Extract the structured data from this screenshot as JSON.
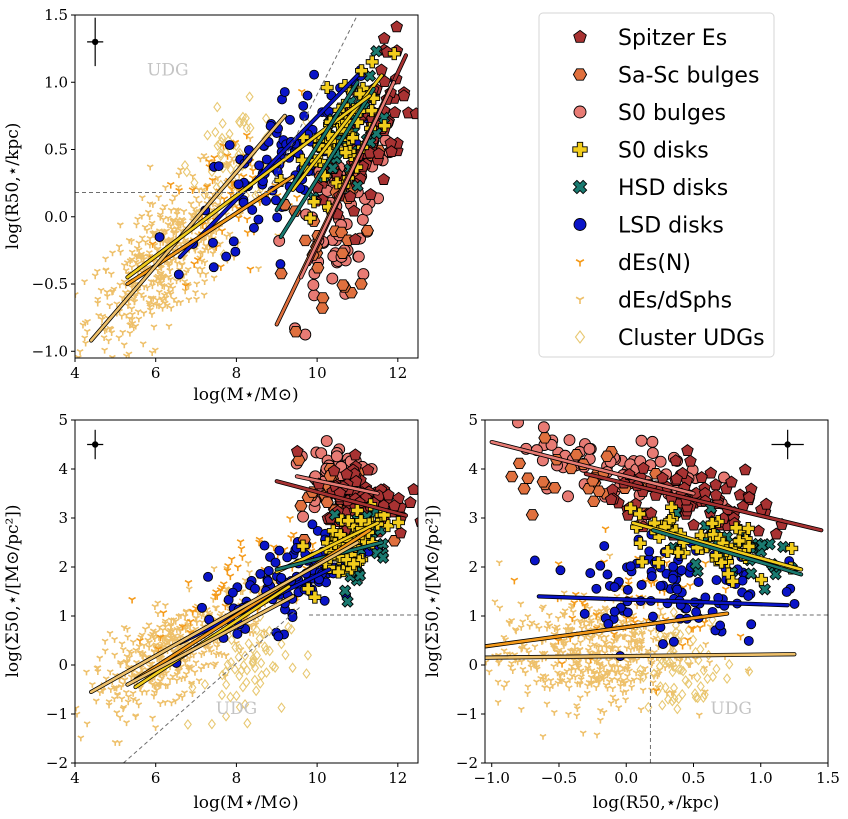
{
  "colors": {
    "spitzer": "#a83232",
    "sasc": "#e0703e",
    "s0b": "#e87b74",
    "s0d": "#f2cd1c",
    "hsd": "#1a7a70",
    "lsd": "#0a14c8",
    "den": "#f59a19",
    "ded": "#eec06a",
    "udgs": "#e8c872"
  },
  "legend": {
    "entries": [
      {
        "key": "spitzer",
        "label": "Spitzer Es",
        "marker": "pentagon"
      },
      {
        "key": "sasc",
        "label": "Sa-Sc bulges",
        "marker": "hexagon"
      },
      {
        "key": "s0b",
        "label": "S0 bulges",
        "marker": "circle"
      },
      {
        "key": "s0d",
        "label": "S0 disks",
        "marker": "plus"
      },
      {
        "key": "hsd",
        "label": "HSD disks",
        "marker": "x"
      },
      {
        "key": "lsd",
        "label": "LSD disks",
        "marker": "circle"
      },
      {
        "key": "den",
        "label": "dEs(N)",
        "marker": "tri"
      },
      {
        "key": "ded",
        "label": "dEs/dSphs",
        "marker": "tri"
      },
      {
        "key": "udgs",
        "label": "Cluster UDGs",
        "marker": "diamond"
      }
    ]
  },
  "chart_data": [
    {
      "id": "p1",
      "type": "scatter",
      "title": "",
      "xlabel": "log(M⋆/M⊙)",
      "ylabel": "log(R50,⋆/kpc)",
      "xlim": [
        4,
        12.5
      ],
      "ylim": [
        -1.05,
        1.5
      ],
      "xticks": [
        4,
        6,
        8,
        10,
        12
      ],
      "yticks": [
        -1.0,
        -0.5,
        0.0,
        0.5,
        1.0,
        1.5
      ],
      "xtick_labels": [
        "4",
        "6",
        "8",
        "10",
        "12"
      ],
      "ytick_labels": [
        "−1.0",
        "−0.5",
        "0.0",
        "0.5",
        "1.0",
        "1.5"
      ],
      "annotation": {
        "text": "UDG",
        "x": 6.3,
        "y": 1.05
      },
      "series": [
        {
          "name": "Spitzer Es",
          "key": "spitzer",
          "center": [
            11.2,
            0.55
          ],
          "spread": [
            0.55,
            0.35
          ],
          "corr": 0.6,
          "count": 90,
          "fit": [
            [
              9.8,
              -0.35
            ],
            [
              12.2,
              1.2
            ]
          ]
        },
        {
          "name": "Sa-Sc bulges",
          "key": "sasc",
          "center": [
            10.2,
            -0.2
          ],
          "spread": [
            0.6,
            0.35
          ],
          "corr": 0.5,
          "count": 30,
          "fit": [
            [
              9.0,
              -0.8
            ],
            [
              11.8,
              0.95
            ]
          ]
        },
        {
          "name": "S0 bulges",
          "key": "s0b",
          "center": [
            10.5,
            -0.05
          ],
          "spread": [
            0.55,
            0.35
          ],
          "corr": 0.5,
          "count": 65,
          "fit": [
            [
              9.6,
              -0.45
            ],
            [
              11.9,
              1.0
            ]
          ]
        },
        {
          "name": "S0 disks",
          "key": "s0d",
          "center": [
            10.6,
            0.6
          ],
          "spread": [
            0.5,
            0.25
          ],
          "corr": 0.55,
          "count": 55,
          "fit": [
            [
              9.4,
              0.2
            ],
            [
              11.6,
              1.05
            ]
          ]
        },
        {
          "name": "HSD disks",
          "key": "hsd",
          "center": [
            10.8,
            0.65
          ],
          "spread": [
            0.4,
            0.22
          ],
          "corr": 0.55,
          "count": 35,
          "fit": [
            [
              9.1,
              -0.15
            ],
            [
              11.4,
              0.95
            ]
          ]
        },
        {
          "name": "LSD disks",
          "key": "lsd",
          "center": [
            9.3,
            0.45
          ],
          "spread": [
            1.1,
            0.35
          ],
          "corr": 0.65,
          "count": 110,
          "fit": [
            [
              6.6,
              -0.3
            ],
            [
              11.0,
              1.05
            ]
          ]
        },
        {
          "name": "dEs(N)",
          "key": "den",
          "center": [
            7.8,
            0.1
          ],
          "spread": [
            0.9,
            0.3
          ],
          "corr": 0.5,
          "count": 60,
          "fit": [
            [
              5.3,
              -0.5
            ],
            [
              9.4,
              0.3
            ]
          ]
        },
        {
          "name": "dEs/dSphs",
          "key": "ded",
          "center": [
            6.3,
            -0.3
          ],
          "spread": [
            1.0,
            0.33
          ],
          "corr": 0.7,
          "count": 480,
          "fit": [
            [
              4.4,
              -0.92
            ],
            [
              9.2,
              0.75
            ]
          ]
        },
        {
          "name": "Cluster UDGs",
          "key": "udgs",
          "center": [
            8.0,
            0.45
          ],
          "spread": [
            0.55,
            0.18
          ],
          "corr": 0.2,
          "count": 60,
          "fit": null
        }
      ],
      "extra_fits": [
        {
          "key": "s0d",
          "line": [
            [
              5.3,
              -0.45
            ],
            [
              11.3,
              0.9
            ]
          ]
        },
        {
          "key": "hsd",
          "line": [
            [
              9.0,
              0.05
            ],
            [
              11.0,
              1.0
            ]
          ]
        }
      ],
      "guides": [
        {
          "type": "dashed",
          "points": [
            [
              4,
              0.18
            ],
            [
              9.0,
              0.18
            ]
          ]
        },
        {
          "type": "dashed",
          "points": [
            [
              8.8,
              0.2
            ],
            [
              11.0,
              1.5
            ]
          ]
        }
      ],
      "errorbar": {
        "x": 4.5,
        "y": 1.3,
        "xerr": 0.2,
        "yerr": 0.18
      }
    },
    {
      "id": "p2",
      "type": "scatter",
      "title": "",
      "xlabel": "log(M⋆/M⊙)",
      "ylabel": "log(Σ50,⋆/[M⊙/pc²])",
      "xlim": [
        4,
        12.5
      ],
      "ylim": [
        -2,
        5
      ],
      "xticks": [
        4,
        6,
        8,
        10,
        12
      ],
      "yticks": [
        -2,
        -1,
        0,
        1,
        2,
        3,
        4,
        5
      ],
      "xtick_labels": [
        "4",
        "6",
        "8",
        "10",
        "12"
      ],
      "ytick_labels": [
        "−2",
        "−1",
        "0",
        "1",
        "2",
        "3",
        "4",
        "5"
      ],
      "annotation": {
        "text": "UDG",
        "x": 8.0,
        "y": -1.0
      },
      "series": [
        {
          "name": "Spitzer Es",
          "key": "spitzer",
          "center": [
            11.2,
            3.4
          ],
          "spread": [
            0.5,
            0.35
          ],
          "corr": -0.2,
          "count": 90,
          "fit": [
            [
              9.0,
              3.75
            ],
            [
              12.2,
              3.05
            ]
          ]
        },
        {
          "name": "Sa-Sc bulges",
          "key": "sasc",
          "center": [
            10.5,
            3.4
          ],
          "spread": [
            0.5,
            0.4
          ],
          "corr": 0.0,
          "count": 30,
          "fit": null
        },
        {
          "name": "S0 bulges",
          "key": "s0b",
          "center": [
            10.5,
            3.9
          ],
          "spread": [
            0.5,
            0.4
          ],
          "corr": 0.0,
          "count": 65,
          "fit": [
            [
              9.5,
              3.85
            ],
            [
              11.5,
              3.5
            ]
          ]
        },
        {
          "name": "S0 disks",
          "key": "s0d",
          "center": [
            10.7,
            2.5
          ],
          "spread": [
            0.5,
            0.4
          ],
          "corr": 0.4,
          "count": 55,
          "fit": [
            [
              9.0,
              1.9
            ],
            [
              11.5,
              2.9
            ]
          ]
        },
        {
          "name": "HSD disks",
          "key": "hsd",
          "center": [
            11.0,
            2.4
          ],
          "spread": [
            0.4,
            0.4
          ],
          "corr": 0.3,
          "count": 35,
          "fit": [
            [
              9.0,
              1.95
            ],
            [
              11.6,
              2.5
            ]
          ]
        },
        {
          "name": "LSD disks",
          "key": "lsd",
          "center": [
            9.5,
            1.8
          ],
          "spread": [
            0.9,
            0.55
          ],
          "corr": 0.6,
          "count": 110,
          "fit": [
            [
              6.6,
              0.45
            ],
            [
              10.3,
              1.95
            ]
          ]
        },
        {
          "name": "dEs(N)",
          "key": "den",
          "center": [
            8.0,
            1.5
          ],
          "spread": [
            1.0,
            0.6
          ],
          "corr": 0.6,
          "count": 60,
          "fit": [
            [
              5.5,
              -0.3
            ],
            [
              11.3,
              2.75
            ]
          ]
        },
        {
          "name": "dEs/dSphs",
          "key": "ded",
          "center": [
            6.5,
            0.3
          ],
          "spread": [
            1.1,
            0.65
          ],
          "corr": 0.75,
          "count": 480,
          "fit": [
            [
              4.4,
              -0.55
            ],
            [
              11.0,
              2.5
            ]
          ]
        },
        {
          "name": "Cluster UDGs",
          "key": "udgs",
          "center": [
            8.2,
            -0.1
          ],
          "spread": [
            0.55,
            0.5
          ],
          "corr": 0.3,
          "count": 60,
          "fit": null
        }
      ],
      "extra_fits": [
        {
          "key": "s0d",
          "line": [
            [
              5.5,
              -0.45
            ],
            [
              9.3,
              1.6
            ]
          ]
        },
        {
          "key": "ded",
          "line": [
            [
              5.3,
              -0.4
            ],
            [
              9.4,
              1.4
            ]
          ]
        }
      ],
      "guides": [
        {
          "type": "dashed",
          "points": [
            [
              9.8,
              1.02
            ],
            [
              12.5,
              1.02
            ]
          ]
        },
        {
          "type": "dashed",
          "points": [
            [
              5.2,
              -2.0
            ],
            [
              9.6,
              1.2
            ]
          ]
        }
      ],
      "errorbar": {
        "x": 4.5,
        "y": 4.5,
        "xerr": 0.2,
        "yerr": 0.3
      }
    },
    {
      "id": "p3",
      "type": "scatter",
      "title": "",
      "xlabel": "log(R50,⋆/kpc)",
      "ylabel": "log(Σ50,⋆/[M⊙/pc²])",
      "xlim": [
        -1.05,
        1.5
      ],
      "ylim": [
        -2,
        5
      ],
      "xticks": [
        -1.0,
        -0.5,
        0.0,
        0.5,
        1.0,
        1.5
      ],
      "yticks": [
        -2,
        -1,
        0,
        1,
        2,
        3,
        4,
        5
      ],
      "xtick_labels": [
        "−1.0",
        "−0.5",
        "0.0",
        "0.5",
        "1.0",
        "1.5"
      ],
      "ytick_labels": [
        "−2",
        "−1",
        "0",
        "1",
        "2",
        "3",
        "4",
        "5"
      ],
      "annotation": {
        "text": "UDG",
        "x": 0.78,
        "y": -1.0
      },
      "series": [
        {
          "name": "Spitzer Es",
          "key": "spitzer",
          "center": [
            0.6,
            3.3
          ],
          "spread": [
            0.35,
            0.35
          ],
          "corr": -0.5,
          "count": 90,
          "fit": [
            [
              -0.3,
              3.9
            ],
            [
              1.45,
              2.75
            ]
          ]
        },
        {
          "name": "Sa-Sc bulges",
          "key": "sasc",
          "center": [
            -0.3,
            3.8
          ],
          "spread": [
            0.3,
            0.4
          ],
          "corr": -0.3,
          "count": 30,
          "fit": null
        },
        {
          "name": "S0 bulges",
          "key": "s0b",
          "center": [
            -0.1,
            4.0
          ],
          "spread": [
            0.35,
            0.35
          ],
          "corr": -0.3,
          "count": 65,
          "fit": [
            [
              -1.0,
              4.55
            ],
            [
              0.5,
              3.5
            ]
          ]
        },
        {
          "name": "S0 disks",
          "key": "s0d",
          "center": [
            0.55,
            2.5
          ],
          "spread": [
            0.3,
            0.4
          ],
          "corr": -0.3,
          "count": 55,
          "fit": [
            [
              0.05,
              2.9
            ],
            [
              1.3,
              1.95
            ]
          ]
        },
        {
          "name": "HSD disks",
          "key": "hsd",
          "center": [
            0.75,
            2.3
          ],
          "spread": [
            0.3,
            0.35
          ],
          "corr": -0.3,
          "count": 35,
          "fit": [
            [
              0.2,
              2.75
            ],
            [
              1.3,
              1.85
            ]
          ]
        },
        {
          "name": "LSD disks",
          "key": "lsd",
          "center": [
            0.35,
            1.6
          ],
          "spread": [
            0.35,
            0.6
          ],
          "corr": 0.0,
          "count": 110,
          "fit": [
            [
              -0.65,
              1.4
            ],
            [
              1.2,
              1.22
            ]
          ]
        },
        {
          "name": "dEs(N)",
          "key": "den",
          "center": [
            0.0,
            1.3
          ],
          "spread": [
            0.35,
            0.6
          ],
          "corr": 0.0,
          "count": 60,
          "fit": [
            [
              -1.05,
              0.38
            ],
            [
              0.75,
              1.05
            ]
          ]
        },
        {
          "name": "dEs/dSphs",
          "key": "ded",
          "center": [
            -0.25,
            0.25
          ],
          "spread": [
            0.35,
            0.55
          ],
          "corr": 0.1,
          "count": 480,
          "fit": [
            [
              -1.05,
              0.15
            ],
            [
              1.25,
              0.22
            ]
          ]
        },
        {
          "name": "Cluster UDGs",
          "key": "udgs",
          "center": [
            0.45,
            0.0
          ],
          "spread": [
            0.18,
            0.5
          ],
          "corr": 0.0,
          "count": 60,
          "fit": null
        }
      ],
      "extra_fits": [],
      "guides": [
        {
          "type": "dashed",
          "points": [
            [
              0.18,
              -2.0
            ],
            [
              0.18,
              0.4
            ]
          ]
        },
        {
          "type": "dashed",
          "points": [
            [
              1.0,
              1.02
            ],
            [
              1.5,
              1.02
            ]
          ]
        }
      ],
      "errorbar": {
        "x": 1.2,
        "y": 4.5,
        "xerr": 0.12,
        "yerr": 0.3
      }
    }
  ]
}
